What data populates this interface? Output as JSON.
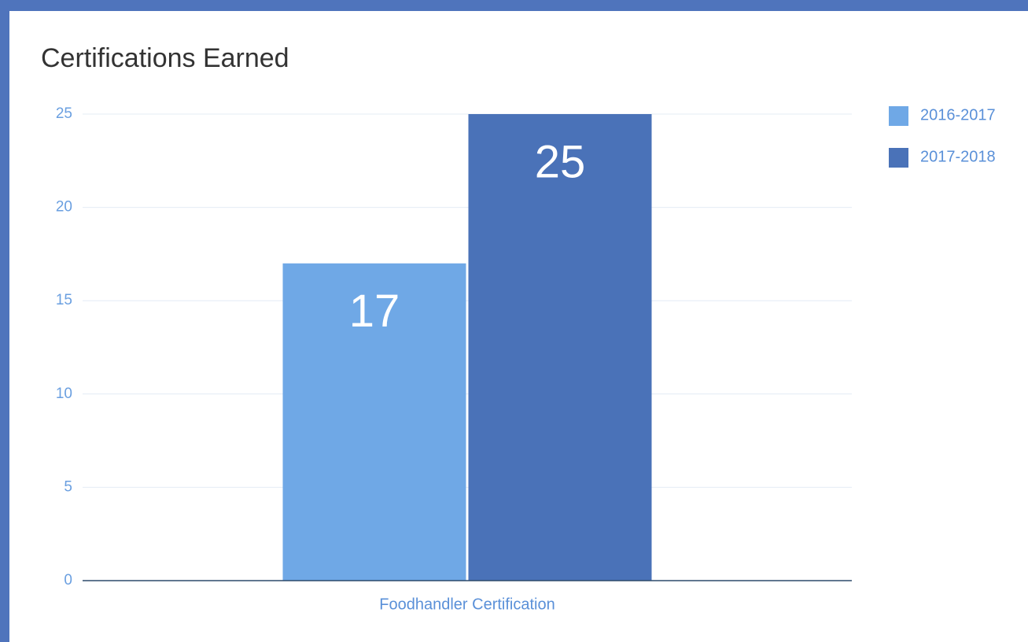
{
  "chart_data": {
    "type": "bar",
    "title": "Certifications Earned",
    "categories": [
      "Foodhandler Certification"
    ],
    "series": [
      {
        "name": "2016-2017",
        "color": "#6fa8e6",
        "values": [
          17
        ]
      },
      {
        "name": "2017-2018",
        "color": "#4a72b8",
        "values": [
          25
        ]
      }
    ],
    "ylim": [
      0,
      25
    ],
    "yticks": [
      0,
      5,
      10,
      15,
      20,
      25
    ],
    "grid": true,
    "legend": "right"
  }
}
